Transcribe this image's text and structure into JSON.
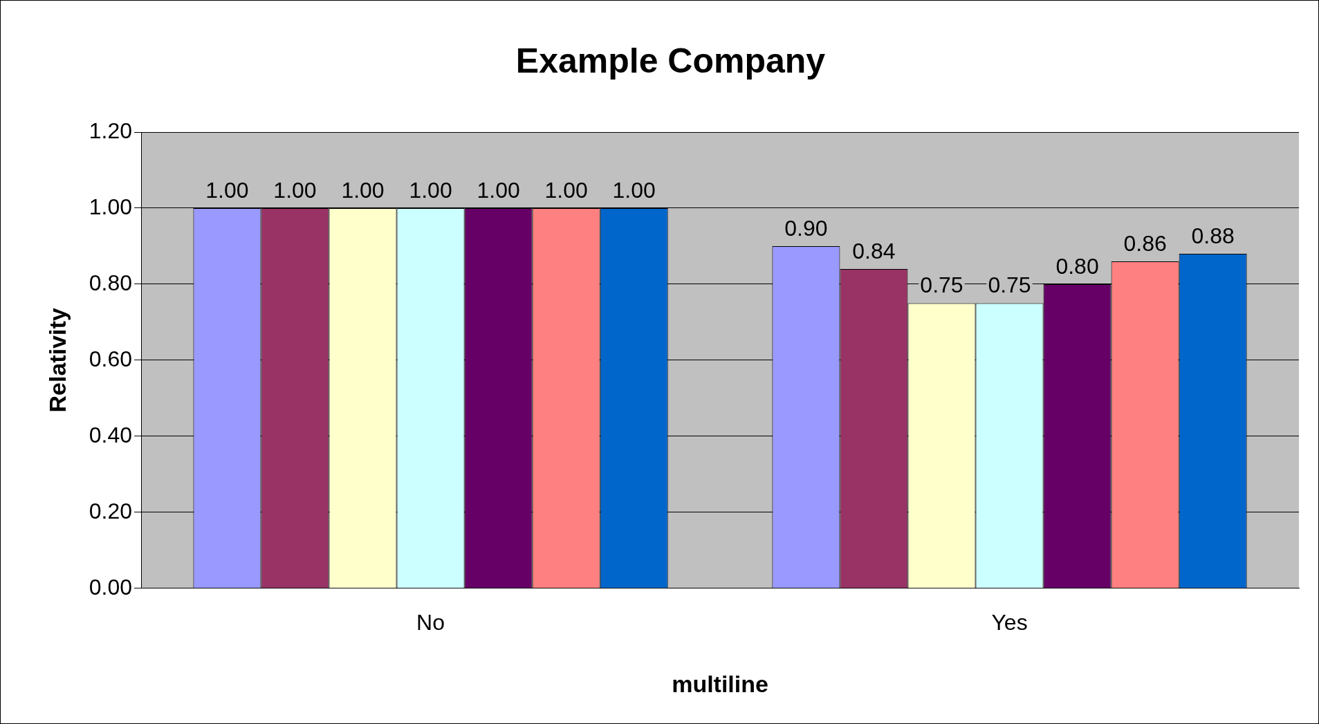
{
  "chart_data": {
    "type": "bar",
    "title": "Example Company",
    "xlabel": "multiline",
    "ylabel": "Relativity",
    "categories": [
      "No",
      "Yes"
    ],
    "series": [
      {
        "color": "#9999ff",
        "values": [
          1.0,
          0.9
        ],
        "value_labels": [
          "1.00",
          "0.90"
        ]
      },
      {
        "color": "#993366",
        "values": [
          1.0,
          0.84
        ],
        "value_labels": [
          "1.00",
          "0.84"
        ]
      },
      {
        "color": "#ffffcc",
        "values": [
          1.0,
          0.75
        ],
        "value_labels": [
          "1.00",
          "0.75"
        ]
      },
      {
        "color": "#ccffff",
        "values": [
          1.0,
          0.75
        ],
        "value_labels": [
          "1.00",
          "0.75"
        ]
      },
      {
        "color": "#660066",
        "values": [
          1.0,
          0.8
        ],
        "value_labels": [
          "1.00",
          "0.80"
        ]
      },
      {
        "color": "#ff8080",
        "values": [
          1.0,
          0.86
        ],
        "value_labels": [
          "1.00",
          "0.86"
        ]
      },
      {
        "color": "#0066cc",
        "values": [
          1.0,
          0.88
        ],
        "value_labels": [
          "1.00",
          "0.88"
        ]
      }
    ],
    "ylim": [
      0,
      1.2
    ],
    "yticks": [
      {
        "value": 0,
        "label": "0.00"
      },
      {
        "value": 0.2,
        "label": "0.20"
      },
      {
        "value": 0.4,
        "label": "0.40"
      },
      {
        "value": 0.6,
        "label": "0.60"
      },
      {
        "value": 0.8,
        "label": "0.80"
      },
      {
        "value": 1.0,
        "label": "1.00"
      },
      {
        "value": 1.2,
        "label": "1.20"
      }
    ],
    "grid": "y",
    "legend": false
  }
}
